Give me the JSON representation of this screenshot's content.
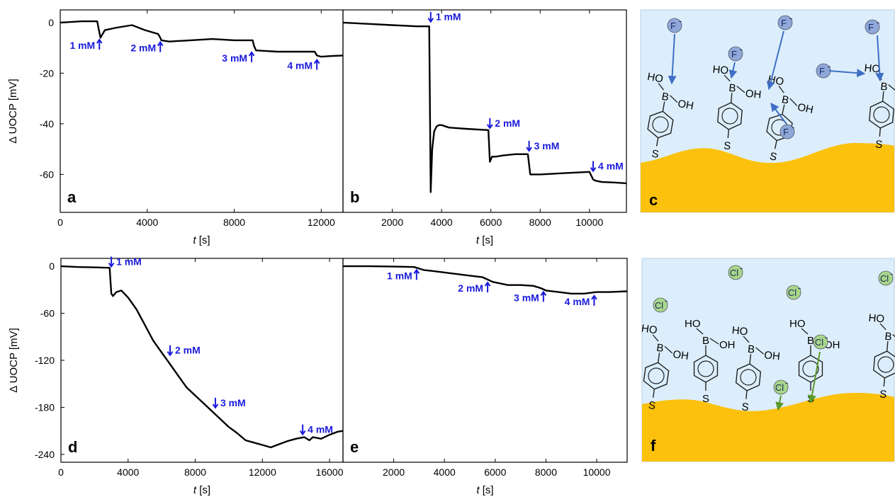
{
  "chart_data": [
    {
      "panel": "a",
      "type": "line",
      "xlabel": "t [s]",
      "ylabel": "Δ UOCP [mV]",
      "xlim": [
        0,
        13000
      ],
      "ylim": [
        -75,
        5
      ],
      "xticks": [
        0,
        4000,
        8000,
        12000
      ],
      "yticks": [
        0,
        -20,
        -40,
        -60
      ],
      "series": [
        {
          "x": [
            0,
            1000,
            1700,
            1780,
            1850,
            2050,
            2600,
            3300,
            3900,
            4500,
            4600,
            4650,
            5000,
            6000,
            7000,
            8000,
            8850,
            8900,
            9000,
            10000,
            11000,
            11700,
            11800,
            12000,
            12500,
            13000
          ],
          "y": [
            0,
            0.5,
            0.5,
            -3,
            -6,
            -3,
            -2,
            -1,
            -3,
            -4.5,
            -6,
            -7,
            -7.5,
            -7,
            -6.5,
            -7,
            -7,
            -9,
            -11,
            -11.5,
            -11.5,
            -11.5,
            -13,
            -13.5,
            -13.2,
            -13
          ]
        }
      ],
      "annotations": [
        {
          "text": "1 mM",
          "x": 1800,
          "y": -9,
          "dir": "up"
        },
        {
          "text": "2 mM",
          "x": 4600,
          "y": -10,
          "dir": "up"
        },
        {
          "text": "3 mM",
          "x": 8800,
          "y": -14,
          "dir": "up"
        },
        {
          "text": "4 mM",
          "x": 11800,
          "y": -17,
          "dir": "up"
        }
      ]
    },
    {
      "panel": "b",
      "type": "line",
      "xlabel": "t [s]",
      "ylabel": "",
      "xlim": [
        0,
        11500
      ],
      "ylim": [
        -75,
        5
      ],
      "xticks": [
        2000,
        4000,
        6000,
        8000,
        10000
      ],
      "yticks": [],
      "series": [
        {
          "x": [
            0,
            1000,
            2000,
            3000,
            3500,
            3560,
            3620,
            3700,
            3800,
            3900,
            4000,
            4300,
            5000,
            5900,
            5960,
            6050,
            6200,
            6500,
            7000,
            7500,
            7600,
            8000,
            9000,
            10000,
            10150,
            10250,
            10500,
            11000,
            11500
          ],
          "y": [
            0,
            -0.5,
            -1,
            -1.5,
            -1.5,
            -67,
            -50,
            -43,
            -41,
            -40.5,
            -40.5,
            -41.5,
            -42,
            -42.5,
            -55,
            -53,
            -53,
            -52.5,
            -52,
            -52,
            -60,
            -60,
            -59.5,
            -59,
            -62,
            -62.5,
            -63,
            -63.2,
            -63.5
          ]
        }
      ],
      "annotations": [
        {
          "text": "1 mM",
          "x": 3560,
          "y": 2,
          "dir": "down"
        },
        {
          "text": "2 mM",
          "x": 5960,
          "y": -40,
          "dir": "down"
        },
        {
          "text": "3 mM",
          "x": 7550,
          "y": -49,
          "dir": "down"
        },
        {
          "text": "4 mM",
          "x": 10150,
          "y": -57,
          "dir": "down"
        }
      ]
    },
    {
      "panel": "d",
      "type": "line",
      "xlabel": "t [s]",
      "ylabel": "Δ UOCP [mV]",
      "xlim": [
        0,
        16800
      ],
      "ylim": [
        -250,
        10
      ],
      "xticks": [
        0,
        4000,
        8000,
        12000,
        16000
      ],
      "yticks": [
        0,
        -60,
        -120,
        -180,
        -240
      ],
      "series": [
        {
          "x": [
            0,
            1000,
            2000,
            2900,
            3000,
            3100,
            3300,
            3600,
            4000,
            4500,
            5000,
            5500,
            6000,
            6500,
            7000,
            7500,
            8000,
            8500,
            9000,
            9500,
            10000,
            10500,
            11000,
            11500,
            12000,
            12500,
            13000,
            13500,
            14000,
            14500,
            14800,
            15000,
            15500,
            16000,
            16500,
            16800
          ],
          "y": [
            0,
            -1,
            -1.5,
            -2,
            -35,
            -38,
            -33,
            -31,
            -40,
            -55,
            -75,
            -95,
            -110,
            -125,
            -140,
            -155,
            -165,
            -175,
            -185,
            -195,
            -205,
            -213,
            -222,
            -225,
            -228,
            -231,
            -227,
            -223,
            -220,
            -218,
            -222,
            -218,
            -220,
            -215,
            -211,
            -210
          ]
        }
      ],
      "annotations": [
        {
          "text": "1 mM",
          "x": 3000,
          "y": 5,
          "dir": "down"
        },
        {
          "text": "2 mM",
          "x": 6500,
          "y": -108,
          "dir": "down"
        },
        {
          "text": "3 mM",
          "x": 9200,
          "y": -175,
          "dir": "down"
        },
        {
          "text": "4 mM",
          "x": 14400,
          "y": -209,
          "dir": "down"
        }
      ]
    },
    {
      "panel": "e",
      "type": "line",
      "xlabel": "t [s]",
      "ylabel": "",
      "xlim": [
        0,
        11200
      ],
      "ylim": [
        -250,
        10
      ],
      "xticks": [
        2000,
        4000,
        6000,
        8000,
        10000
      ],
      "yticks": [],
      "series": [
        {
          "x": [
            0,
            1000,
            2000,
            2800,
            3000,
            3200,
            3500,
            4000,
            4500,
            5000,
            5500,
            5700,
            5900,
            6200,
            6500,
            7000,
            7500,
            7800,
            8000,
            8500,
            9000,
            9500,
            10000,
            10500,
            11200
          ],
          "y": [
            0,
            0,
            -0.5,
            -1,
            -3,
            -5,
            -6,
            -8,
            -10,
            -12,
            -14,
            -17,
            -20,
            -22,
            -24,
            -24,
            -25,
            -28,
            -31,
            -33,
            -35,
            -35,
            -33,
            -33,
            -32
          ]
        }
      ],
      "annotations": [
        {
          "text": "1 mM",
          "x": 2900,
          "y": -12,
          "dir": "up"
        },
        {
          "text": "2 mM",
          "x": 5700,
          "y": -28,
          "dir": "up"
        },
        {
          "text": "3 mM",
          "x": 7900,
          "y": -40,
          "dir": "up"
        },
        {
          "text": "4 mM",
          "x": 9900,
          "y": -45,
          "dir": "up"
        }
      ]
    }
  ],
  "schematics": {
    "c": {
      "panel": "c",
      "ion_label": "F",
      "ion_charge": "-",
      "ion_color": "#8fa7d9",
      "arrow_color": "#3f6fc4",
      "molecule_labels": {
        "boron": "B",
        "hydroxyl": "OH",
        "hydroxyl_left": "HO",
        "sulfur": "S"
      }
    },
    "f": {
      "panel": "f",
      "ion_label": "Cl",
      "ion_charge": "-",
      "ion_color": "#a8d68a",
      "arrow_color": "#5a9a2a",
      "molecule_labels": {
        "boron": "B",
        "hydroxyl": "OH",
        "hydroxyl_left": "HO",
        "sulfur": "S"
      }
    }
  },
  "colors": {
    "curve": "#000000",
    "annotation": "#1a1adc",
    "solution": "#dceefb",
    "gold": "#fbc10c"
  }
}
